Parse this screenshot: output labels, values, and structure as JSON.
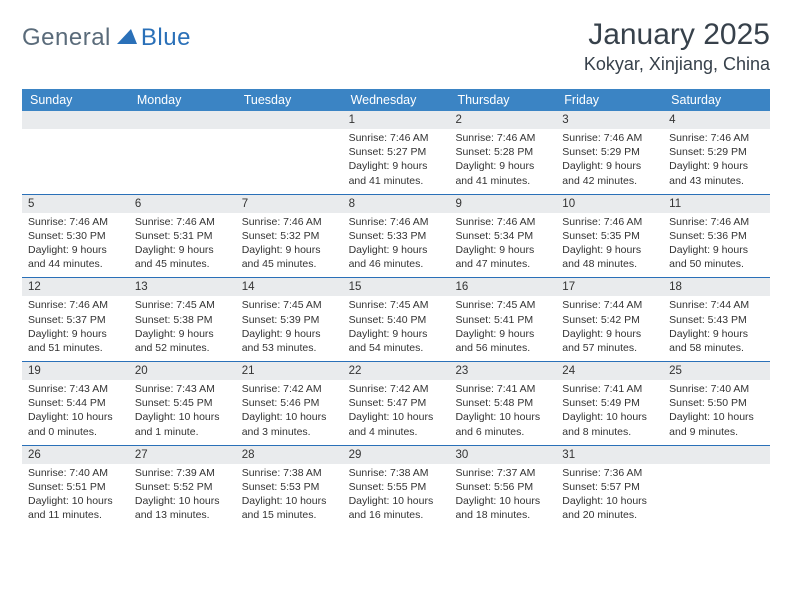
{
  "logo": {
    "text1": "General",
    "text2": "Blue"
  },
  "header": {
    "title": "January 2025",
    "location": "Kokyar, Xinjiang, China"
  },
  "colors": {
    "header_bar": "#3b84c4",
    "daynum_bg": "#e9ebed",
    "rule": "#2a70b8",
    "text": "#333333",
    "logo_gray": "#5a6b7a",
    "logo_blue": "#2a70b8"
  },
  "dayNames": [
    "Sunday",
    "Monday",
    "Tuesday",
    "Wednesday",
    "Thursday",
    "Friday",
    "Saturday"
  ],
  "weeks": [
    [
      {
        "n": "",
        "sr": "",
        "ss": "",
        "dl": ""
      },
      {
        "n": "",
        "sr": "",
        "ss": "",
        "dl": ""
      },
      {
        "n": "",
        "sr": "",
        "ss": "",
        "dl": ""
      },
      {
        "n": "1",
        "sr": "7:46 AM",
        "ss": "5:27 PM",
        "dl": "9 hours and 41 minutes."
      },
      {
        "n": "2",
        "sr": "7:46 AM",
        "ss": "5:28 PM",
        "dl": "9 hours and 41 minutes."
      },
      {
        "n": "3",
        "sr": "7:46 AM",
        "ss": "5:29 PM",
        "dl": "9 hours and 42 minutes."
      },
      {
        "n": "4",
        "sr": "7:46 AM",
        "ss": "5:29 PM",
        "dl": "9 hours and 43 minutes."
      }
    ],
    [
      {
        "n": "5",
        "sr": "7:46 AM",
        "ss": "5:30 PM",
        "dl": "9 hours and 44 minutes."
      },
      {
        "n": "6",
        "sr": "7:46 AM",
        "ss": "5:31 PM",
        "dl": "9 hours and 45 minutes."
      },
      {
        "n": "7",
        "sr": "7:46 AM",
        "ss": "5:32 PM",
        "dl": "9 hours and 45 minutes."
      },
      {
        "n": "8",
        "sr": "7:46 AM",
        "ss": "5:33 PM",
        "dl": "9 hours and 46 minutes."
      },
      {
        "n": "9",
        "sr": "7:46 AM",
        "ss": "5:34 PM",
        "dl": "9 hours and 47 minutes."
      },
      {
        "n": "10",
        "sr": "7:46 AM",
        "ss": "5:35 PM",
        "dl": "9 hours and 48 minutes."
      },
      {
        "n": "11",
        "sr": "7:46 AM",
        "ss": "5:36 PM",
        "dl": "9 hours and 50 minutes."
      }
    ],
    [
      {
        "n": "12",
        "sr": "7:46 AM",
        "ss": "5:37 PM",
        "dl": "9 hours and 51 minutes."
      },
      {
        "n": "13",
        "sr": "7:45 AM",
        "ss": "5:38 PM",
        "dl": "9 hours and 52 minutes."
      },
      {
        "n": "14",
        "sr": "7:45 AM",
        "ss": "5:39 PM",
        "dl": "9 hours and 53 minutes."
      },
      {
        "n": "15",
        "sr": "7:45 AM",
        "ss": "5:40 PM",
        "dl": "9 hours and 54 minutes."
      },
      {
        "n": "16",
        "sr": "7:45 AM",
        "ss": "5:41 PM",
        "dl": "9 hours and 56 minutes."
      },
      {
        "n": "17",
        "sr": "7:44 AM",
        "ss": "5:42 PM",
        "dl": "9 hours and 57 minutes."
      },
      {
        "n": "18",
        "sr": "7:44 AM",
        "ss": "5:43 PM",
        "dl": "9 hours and 58 minutes."
      }
    ],
    [
      {
        "n": "19",
        "sr": "7:43 AM",
        "ss": "5:44 PM",
        "dl": "10 hours and 0 minutes."
      },
      {
        "n": "20",
        "sr": "7:43 AM",
        "ss": "5:45 PM",
        "dl": "10 hours and 1 minute."
      },
      {
        "n": "21",
        "sr": "7:42 AM",
        "ss": "5:46 PM",
        "dl": "10 hours and 3 minutes."
      },
      {
        "n": "22",
        "sr": "7:42 AM",
        "ss": "5:47 PM",
        "dl": "10 hours and 4 minutes."
      },
      {
        "n": "23",
        "sr": "7:41 AM",
        "ss": "5:48 PM",
        "dl": "10 hours and 6 minutes."
      },
      {
        "n": "24",
        "sr": "7:41 AM",
        "ss": "5:49 PM",
        "dl": "10 hours and 8 minutes."
      },
      {
        "n": "25",
        "sr": "7:40 AM",
        "ss": "5:50 PM",
        "dl": "10 hours and 9 minutes."
      }
    ],
    [
      {
        "n": "26",
        "sr": "7:40 AM",
        "ss": "5:51 PM",
        "dl": "10 hours and 11 minutes."
      },
      {
        "n": "27",
        "sr": "7:39 AM",
        "ss": "5:52 PM",
        "dl": "10 hours and 13 minutes."
      },
      {
        "n": "28",
        "sr": "7:38 AM",
        "ss": "5:53 PM",
        "dl": "10 hours and 15 minutes."
      },
      {
        "n": "29",
        "sr": "7:38 AM",
        "ss": "5:55 PM",
        "dl": "10 hours and 16 minutes."
      },
      {
        "n": "30",
        "sr": "7:37 AM",
        "ss": "5:56 PM",
        "dl": "10 hours and 18 minutes."
      },
      {
        "n": "31",
        "sr": "7:36 AM",
        "ss": "5:57 PM",
        "dl": "10 hours and 20 minutes."
      },
      {
        "n": "",
        "sr": "",
        "ss": "",
        "dl": ""
      }
    ]
  ],
  "labels": {
    "sunrise": "Sunrise: ",
    "sunset": "Sunset: ",
    "daylight": "Daylight: "
  }
}
